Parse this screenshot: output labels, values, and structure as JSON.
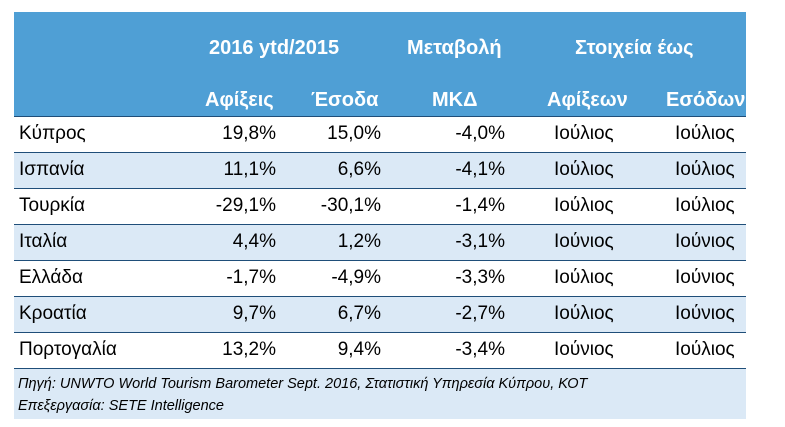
{
  "header": {
    "period": "2016 ytd/2015",
    "change": "Μεταβολή",
    "data_until": "Στοιχεία έως",
    "arrivals": "Αφίξεις",
    "receipts": "Έσοδα",
    "avg_spend": "ΜΚΔ",
    "arrivals_gen": "Αφίξεων",
    "receipts_gen": "Εσόδων"
  },
  "rows": [
    {
      "country": "Κύπρος",
      "arrivals": "19,8%",
      "receipts": "15,0%",
      "mkd": "-4,0%",
      "arr_until": "Ιούλιος",
      "rec_until": "Ιούλιος"
    },
    {
      "country": "Ισπανία",
      "arrivals": "11,1%",
      "receipts": "6,6%",
      "mkd": "-4,1%",
      "arr_until": "Ιούλιος",
      "rec_until": "Ιούλιος"
    },
    {
      "country": "Τουρκία",
      "arrivals": "-29,1%",
      "receipts": "-30,1%",
      "mkd": "-1,4%",
      "arr_until": "Ιούλιος",
      "rec_until": "Ιούλιος"
    },
    {
      "country": "Ιταλία",
      "arrivals": "4,4%",
      "receipts": "1,2%",
      "mkd": "-3,1%",
      "arr_until": "Ιούνιος",
      "rec_until": "Ιούνιος"
    },
    {
      "country": "Ελλάδα",
      "arrivals": "-1,7%",
      "receipts": "-4,9%",
      "mkd": "-3,3%",
      "arr_until": "Ιούλιος",
      "rec_until": "Ιούνιος"
    },
    {
      "country": "Κροατία",
      "arrivals": "9,7%",
      "receipts": "6,7%",
      "mkd": "-2,7%",
      "arr_until": "Ιούλιος",
      "rec_until": "Ιούνιος"
    },
    {
      "country": "Πορτογαλία",
      "arrivals": "13,2%",
      "receipts": "9,4%",
      "mkd": "-3,4%",
      "arr_until": "Ιούνιος",
      "rec_until": "Ιούλιος"
    }
  ],
  "footnote": {
    "source": "Πηγή: UNWTO World Tourism Barometer Sept. 2016, Στατιστική Υπηρεσία Κύπρου, ΚΟΤ",
    "processing": "Επεξεργασία: SETE Intelligence"
  },
  "colors": {
    "header_bg": "#4f9fd5",
    "alt_row_bg": "#dbe9f6",
    "rule": "#1f4e79"
  }
}
